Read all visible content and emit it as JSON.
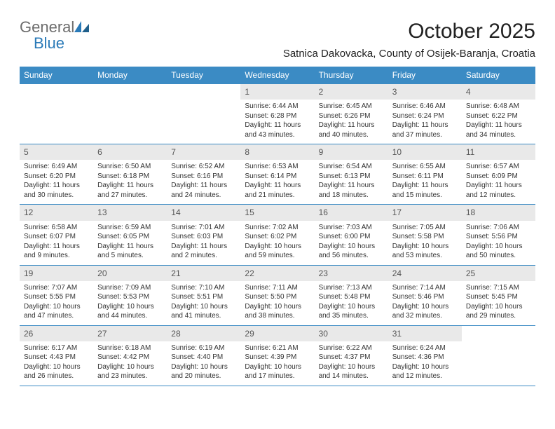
{
  "logo": {
    "text_general": "General",
    "text_blue": "Blue"
  },
  "header": {
    "month_title": "October 2025",
    "location": "Satnica Dakovacka, County of Osijek-Baranja, Croatia"
  },
  "colors": {
    "header_bg": "#3b8bc4",
    "daynum_bg": "#e9e9e9",
    "rule": "#3b8bc4"
  },
  "weekdays": [
    "Sunday",
    "Monday",
    "Tuesday",
    "Wednesday",
    "Thursday",
    "Friday",
    "Saturday"
  ],
  "weeks": [
    [
      {
        "n": "",
        "lines": []
      },
      {
        "n": "",
        "lines": []
      },
      {
        "n": "",
        "lines": []
      },
      {
        "n": "1",
        "lines": [
          "Sunrise: 6:44 AM",
          "Sunset: 6:28 PM",
          "Daylight: 11 hours and 43 minutes."
        ]
      },
      {
        "n": "2",
        "lines": [
          "Sunrise: 6:45 AM",
          "Sunset: 6:26 PM",
          "Daylight: 11 hours and 40 minutes."
        ]
      },
      {
        "n": "3",
        "lines": [
          "Sunrise: 6:46 AM",
          "Sunset: 6:24 PM",
          "Daylight: 11 hours and 37 minutes."
        ]
      },
      {
        "n": "4",
        "lines": [
          "Sunrise: 6:48 AM",
          "Sunset: 6:22 PM",
          "Daylight: 11 hours and 34 minutes."
        ]
      }
    ],
    [
      {
        "n": "5",
        "lines": [
          "Sunrise: 6:49 AM",
          "Sunset: 6:20 PM",
          "Daylight: 11 hours and 30 minutes."
        ]
      },
      {
        "n": "6",
        "lines": [
          "Sunrise: 6:50 AM",
          "Sunset: 6:18 PM",
          "Daylight: 11 hours and 27 minutes."
        ]
      },
      {
        "n": "7",
        "lines": [
          "Sunrise: 6:52 AM",
          "Sunset: 6:16 PM",
          "Daylight: 11 hours and 24 minutes."
        ]
      },
      {
        "n": "8",
        "lines": [
          "Sunrise: 6:53 AM",
          "Sunset: 6:14 PM",
          "Daylight: 11 hours and 21 minutes."
        ]
      },
      {
        "n": "9",
        "lines": [
          "Sunrise: 6:54 AM",
          "Sunset: 6:13 PM",
          "Daylight: 11 hours and 18 minutes."
        ]
      },
      {
        "n": "10",
        "lines": [
          "Sunrise: 6:55 AM",
          "Sunset: 6:11 PM",
          "Daylight: 11 hours and 15 minutes."
        ]
      },
      {
        "n": "11",
        "lines": [
          "Sunrise: 6:57 AM",
          "Sunset: 6:09 PM",
          "Daylight: 11 hours and 12 minutes."
        ]
      }
    ],
    [
      {
        "n": "12",
        "lines": [
          "Sunrise: 6:58 AM",
          "Sunset: 6:07 PM",
          "Daylight: 11 hours and 9 minutes."
        ]
      },
      {
        "n": "13",
        "lines": [
          "Sunrise: 6:59 AM",
          "Sunset: 6:05 PM",
          "Daylight: 11 hours and 5 minutes."
        ]
      },
      {
        "n": "14",
        "lines": [
          "Sunrise: 7:01 AM",
          "Sunset: 6:03 PM",
          "Daylight: 11 hours and 2 minutes."
        ]
      },
      {
        "n": "15",
        "lines": [
          "Sunrise: 7:02 AM",
          "Sunset: 6:02 PM",
          "Daylight: 10 hours and 59 minutes."
        ]
      },
      {
        "n": "16",
        "lines": [
          "Sunrise: 7:03 AM",
          "Sunset: 6:00 PM",
          "Daylight: 10 hours and 56 minutes."
        ]
      },
      {
        "n": "17",
        "lines": [
          "Sunrise: 7:05 AM",
          "Sunset: 5:58 PM",
          "Daylight: 10 hours and 53 minutes."
        ]
      },
      {
        "n": "18",
        "lines": [
          "Sunrise: 7:06 AM",
          "Sunset: 5:56 PM",
          "Daylight: 10 hours and 50 minutes."
        ]
      }
    ],
    [
      {
        "n": "19",
        "lines": [
          "Sunrise: 7:07 AM",
          "Sunset: 5:55 PM",
          "Daylight: 10 hours and 47 minutes."
        ]
      },
      {
        "n": "20",
        "lines": [
          "Sunrise: 7:09 AM",
          "Sunset: 5:53 PM",
          "Daylight: 10 hours and 44 minutes."
        ]
      },
      {
        "n": "21",
        "lines": [
          "Sunrise: 7:10 AM",
          "Sunset: 5:51 PM",
          "Daylight: 10 hours and 41 minutes."
        ]
      },
      {
        "n": "22",
        "lines": [
          "Sunrise: 7:11 AM",
          "Sunset: 5:50 PM",
          "Daylight: 10 hours and 38 minutes."
        ]
      },
      {
        "n": "23",
        "lines": [
          "Sunrise: 7:13 AM",
          "Sunset: 5:48 PM",
          "Daylight: 10 hours and 35 minutes."
        ]
      },
      {
        "n": "24",
        "lines": [
          "Sunrise: 7:14 AM",
          "Sunset: 5:46 PM",
          "Daylight: 10 hours and 32 minutes."
        ]
      },
      {
        "n": "25",
        "lines": [
          "Sunrise: 7:15 AM",
          "Sunset: 5:45 PM",
          "Daylight: 10 hours and 29 minutes."
        ]
      }
    ],
    [
      {
        "n": "26",
        "lines": [
          "Sunrise: 6:17 AM",
          "Sunset: 4:43 PM",
          "Daylight: 10 hours and 26 minutes."
        ]
      },
      {
        "n": "27",
        "lines": [
          "Sunrise: 6:18 AM",
          "Sunset: 4:42 PM",
          "Daylight: 10 hours and 23 minutes."
        ]
      },
      {
        "n": "28",
        "lines": [
          "Sunrise: 6:19 AM",
          "Sunset: 4:40 PM",
          "Daylight: 10 hours and 20 minutes."
        ]
      },
      {
        "n": "29",
        "lines": [
          "Sunrise: 6:21 AM",
          "Sunset: 4:39 PM",
          "Daylight: 10 hours and 17 minutes."
        ]
      },
      {
        "n": "30",
        "lines": [
          "Sunrise: 6:22 AM",
          "Sunset: 4:37 PM",
          "Daylight: 10 hours and 14 minutes."
        ]
      },
      {
        "n": "31",
        "lines": [
          "Sunrise: 6:24 AM",
          "Sunset: 4:36 PM",
          "Daylight: 10 hours and 12 minutes."
        ]
      },
      {
        "n": "",
        "lines": []
      }
    ]
  ]
}
